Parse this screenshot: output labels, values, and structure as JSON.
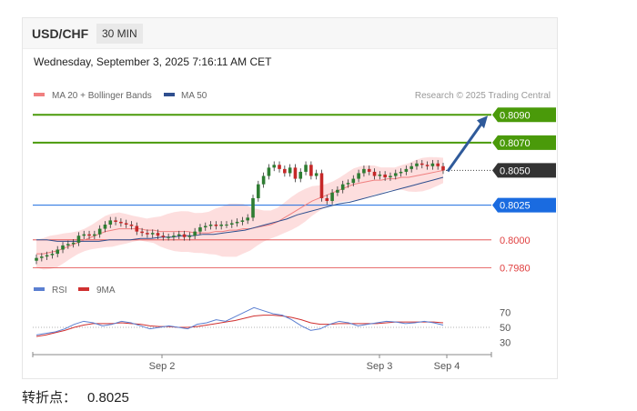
{
  "header": {
    "symbol": "USD/CHF",
    "timeframe": "30 MIN",
    "timestamp": "Wednesday, September 3, 2025 7:16:11 AM CET"
  },
  "legend": {
    "items": [
      {
        "label": "MA 20 + Bollinger Bands",
        "color": "#f08080"
      },
      {
        "label": "MA 50",
        "color": "#2f4f8f"
      }
    ],
    "credit": "Research © 2025 Trading Central"
  },
  "footer": {
    "label": "转折点：",
    "value": "0.8025"
  },
  "colors": {
    "green_level": "#4a9a0a",
    "dark_label": "#333333",
    "blue_level": "#1a6be0",
    "red_level": "#e04040",
    "candle_up": "#2e7d32",
    "candle_down": "#c62828",
    "band_fill": "#fdd8d8",
    "ma20": "#f08080",
    "ma50": "#2f4f8f",
    "rsi": "#5b7fd1",
    "rsi_ma": "#d03030"
  },
  "chart_data": [
    {
      "type": "line",
      "title": "USD/CHF 30 MIN",
      "ylim": [
        0.7975,
        0.81
      ],
      "x_ticks": [
        "Sep 2",
        "Sep 3",
        "Sep 4"
      ],
      "levels": [
        {
          "value": 0.809,
          "label": "0.8090",
          "style": "resistance-target"
        },
        {
          "value": 0.807,
          "label": "0.8070",
          "style": "resistance"
        },
        {
          "value": 0.805,
          "label": "0.8050",
          "style": "last-price"
        },
        {
          "value": 0.8025,
          "label": "0.8025",
          "style": "pivot"
        },
        {
          "value": 0.8,
          "label": "0.8000",
          "style": "support"
        },
        {
          "value": 0.798,
          "label": "0.7980",
          "style": "support"
        }
      ],
      "close_series": [
        0.7987,
        0.7988,
        0.7989,
        0.799,
        0.7993,
        0.7996,
        0.7997,
        0.7998,
        0.8003,
        0.8004,
        0.8003,
        0.8004,
        0.8008,
        0.8011,
        0.8014,
        0.8013,
        0.8012,
        0.8011,
        0.801,
        0.8006,
        0.8005,
        0.8004,
        0.8005,
        0.8003,
        0.8002,
        0.8002,
        0.8003,
        0.8004,
        0.8002,
        0.8003,
        0.8006,
        0.8009,
        0.801,
        0.8011,
        0.801,
        0.8011,
        0.8011,
        0.8012,
        0.8013,
        0.8014,
        0.8016,
        0.803,
        0.804,
        0.8046,
        0.8052,
        0.8054,
        0.8051,
        0.8048,
        0.8052,
        0.8044,
        0.8049,
        0.8054,
        0.8046,
        0.8048,
        0.803,
        0.8028,
        0.8034,
        0.8036,
        0.804,
        0.8041,
        0.8044,
        0.8048,
        0.8051,
        0.8049,
        0.8046,
        0.8047,
        0.8045,
        0.8046,
        0.8048,
        0.8049,
        0.8051,
        0.8053,
        0.8055,
        0.8054,
        0.8053,
        0.8055,
        0.8053,
        0.805
      ],
      "ma20_series": [
        0.799,
        0.799,
        0.7991,
        0.7992,
        0.7994,
        0.7996,
        0.7998,
        0.8,
        0.8002,
        0.8004,
        0.8006,
        0.8007,
        0.8008,
        0.8008,
        0.8008,
        0.8008,
        0.8007,
        0.8007,
        0.8006,
        0.8006,
        0.8006,
        0.8006,
        0.8006,
        0.8005,
        0.8005,
        0.8005,
        0.8006,
        0.8006,
        0.8007,
        0.8007,
        0.8008,
        0.8008,
        0.8009,
        0.801,
        0.8011,
        0.8013,
        0.8016,
        0.8019,
        0.8022,
        0.8025,
        0.8028,
        0.803,
        0.8032,
        0.8034,
        0.8036,
        0.8038,
        0.804,
        0.8041,
        0.8042,
        0.8043,
        0.8043,
        0.8044,
        0.8044,
        0.8045,
        0.8045,
        0.8046,
        0.8047,
        0.8048,
        0.8049,
        0.805
      ],
      "ma50_series": [
        0.8,
        0.8,
        0.7999,
        0.7999,
        0.7999,
        0.7999,
        0.7999,
        0.8,
        0.8,
        0.8,
        0.8001,
        0.8001,
        0.8002,
        0.8002,
        0.8003,
        0.8003,
        0.8004,
        0.8004,
        0.8005,
        0.8006,
        0.8007,
        0.8009,
        0.8011,
        0.8013,
        0.8015,
        0.8018,
        0.802,
        0.8022,
        0.8024,
        0.8026,
        0.8027,
        0.8029,
        0.8031,
        0.8033,
        0.8035,
        0.8037,
        0.8039,
        0.8041,
        0.8043,
        0.8045
      ]
    },
    {
      "type": "line",
      "title": "RSI",
      "legend": [
        "RSI",
        "9MA"
      ],
      "ylim": [
        20,
        80
      ],
      "y_ticks": [
        70,
        50,
        30
      ],
      "rsi_series": [
        40,
        42,
        44,
        48,
        54,
        58,
        56,
        52,
        54,
        58,
        56,
        52,
        48,
        50,
        52,
        50,
        48,
        54,
        56,
        60,
        58,
        64,
        70,
        76,
        72,
        68,
        66,
        60,
        52,
        46,
        48,
        54,
        58,
        56,
        52,
        54,
        56,
        58,
        57,
        55,
        56,
        58,
        56,
        53
      ],
      "rsi_ma_series": [
        38,
        40,
        43,
        46,
        50,
        53,
        55,
        55,
        55,
        56,
        55,
        54,
        52,
        51,
        51,
        50,
        50,
        51,
        53,
        55,
        57,
        59,
        62,
        65,
        66,
        66,
        65,
        63,
        60,
        56,
        54,
        54,
        55,
        55,
        55,
        55,
        55,
        56,
        57,
        57,
        57,
        57,
        57,
        56
      ]
    }
  ]
}
